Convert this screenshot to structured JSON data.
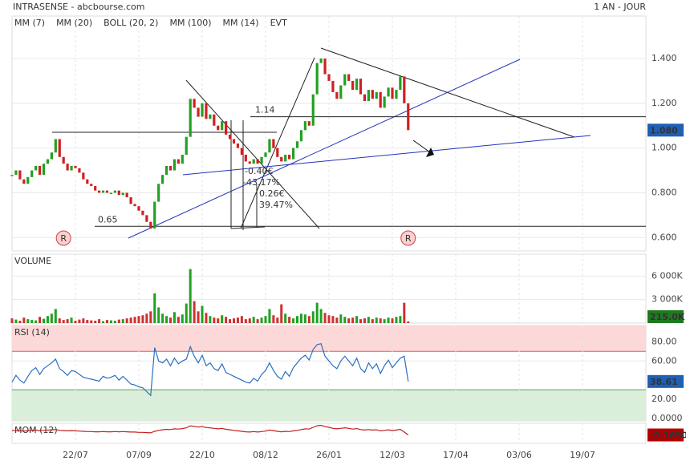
{
  "chart_data": {
    "type": "stock",
    "title": "INTRASENSE - abcbourse.com",
    "period": "1 AN - JOUR",
    "legend": [
      {
        "name": "MM (7)",
        "color": "#2a3fc9"
      },
      {
        "name": "MM (20)",
        "color": "#d62020"
      },
      {
        "name": "BOLL (20, 2)",
        "color": "#f0a860"
      },
      {
        "name": "MM (100)",
        "color": "#22b022"
      },
      {
        "name": "MM (14)",
        "color": "#222222"
      },
      {
        "name": "EVT",
        "color": "#222222"
      }
    ],
    "xlim": [
      0,
      160
    ],
    "xticks": [
      {
        "value": 16,
        "label": "22/07"
      },
      {
        "value": 32,
        "label": "07/09"
      },
      {
        "value": 48,
        "label": "22/10"
      },
      {
        "value": 64,
        "label": "08/12"
      },
      {
        "value": 80,
        "label": "26/01"
      },
      {
        "value": 96,
        "label": "12/03"
      },
      {
        "value": 112,
        "label": "17/04"
      },
      {
        "value": 128,
        "label": "03/06"
      },
      {
        "value": 144,
        "label": "19/07"
      }
    ],
    "price": {
      "up_color": "#22a022",
      "down_color": "#d02020",
      "values": [
        0.88,
        0.9,
        0.86,
        0.84,
        0.87,
        0.9,
        0.92,
        0.88,
        0.93,
        0.95,
        0.98,
        1.04,
        0.96,
        0.93,
        0.9,
        0.92,
        0.91,
        0.89,
        0.86,
        0.84,
        0.83,
        0.81,
        0.8,
        0.81,
        0.8,
        0.8,
        0.81,
        0.79,
        0.8,
        0.78,
        0.75,
        0.74,
        0.72,
        0.7,
        0.67,
        0.64,
        0.76,
        0.84,
        0.88,
        0.92,
        0.9,
        0.95,
        0.93,
        0.97,
        1.05,
        1.22,
        1.18,
        1.14,
        1.2,
        1.13,
        1.15,
        1.1,
        1.08,
        1.12,
        1.06,
        1.04,
        1.02,
        1.0,
        0.97,
        0.94,
        0.93,
        0.95,
        0.93,
        0.96,
        0.98,
        1.04,
        1.0,
        0.96,
        0.94,
        0.97,
        0.95,
        1.0,
        1.03,
        1.08,
        1.12,
        1.1,
        1.24,
        1.38,
        1.4,
        1.33,
        1.3,
        1.25,
        1.22,
        1.28,
        1.33,
        1.3,
        1.26,
        1.31,
        1.24,
        1.21,
        1.26,
        1.22,
        1.25,
        1.18,
        1.23,
        1.27,
        1.22,
        1.26,
        1.32,
        1.2,
        1.08
      ],
      "last_label": "1.080",
      "badge_color": "#1f5fb4",
      "ylim": [
        0.54,
        1.59
      ],
      "yticks": [
        {
          "value": 0.6,
          "label": "0.600"
        },
        {
          "value": 0.8,
          "label": "0.800"
        },
        {
          "value": 1.0,
          "label": "1.000"
        },
        {
          "value": 1.2,
          "label": "1.200"
        },
        {
          "value": 1.4,
          "label": "1.400"
        }
      ],
      "levels": [
        1.14,
        0.65
      ],
      "annotations": [
        "-0.40€",
        "-43.17%",
        "0.26€",
        "39.47%"
      ],
      "events": [
        {
          "label": "R",
          "at": 13
        },
        {
          "label": "R",
          "at": 100
        }
      ]
    },
    "volume": {
      "title": "VOLUME",
      "color": "#d03030",
      "up_color": "#22a022",
      "values": [
        600,
        450,
        300,
        700,
        500,
        400,
        350,
        800,
        550,
        900,
        1200,
        1800,
        600,
        400,
        500,
        700,
        300,
        450,
        600,
        400,
        350,
        300,
        500,
        250,
        400,
        350,
        300,
        450,
        500,
        600,
        700,
        800,
        900,
        1000,
        1200,
        1500,
        3800,
        2000,
        1200,
        900,
        700,
        1400,
        800,
        1100,
        2500,
        6900,
        2800,
        1500,
        2200,
        1300,
        900,
        700,
        600,
        1000,
        800,
        500,
        600,
        700,
        900,
        500,
        600,
        800,
        500,
        700,
        900,
        1800,
        1000,
        700,
        2400,
        1200,
        800,
        600,
        900,
        1200,
        1100,
        900,
        1500,
        2600,
        1800,
        1300,
        1000,
        900,
        700,
        1100,
        800,
        600,
        700,
        900,
        500,
        600,
        800,
        500,
        700,
        600,
        500,
        700,
        600,
        800,
        900,
        2600,
        215
      ],
      "last_label": "215.0K",
      "badge_color": "#1e7a1e",
      "ylim": [
        0,
        8800
      ],
      "yticks": [
        {
          "value": 3000,
          "label": "3 000K"
        },
        {
          "value": 6000,
          "label": "6 000K"
        }
      ]
    },
    "rsi": {
      "title": "RSI (14)",
      "color": "#2a6fc0",
      "values": [
        38,
        45,
        40,
        37,
        44,
        50,
        53,
        46,
        52,
        55,
        58,
        62,
        52,
        49,
        45,
        50,
        49,
        46,
        43,
        42,
        41,
        40,
        39,
        44,
        42,
        43,
        45,
        40,
        44,
        40,
        36,
        35,
        33,
        32,
        28,
        24,
        74,
        60,
        58,
        62,
        55,
        63,
        57,
        60,
        62,
        75,
        65,
        58,
        66,
        55,
        58,
        52,
        50,
        57,
        48,
        46,
        44,
        42,
        40,
        38,
        37,
        42,
        39,
        46,
        50,
        58,
        50,
        44,
        41,
        49,
        44,
        53,
        58,
        63,
        66,
        61,
        72,
        77,
        78,
        65,
        60,
        55,
        52,
        60,
        65,
        60,
        55,
        63,
        52,
        48,
        58,
        52,
        57,
        47,
        55,
        61,
        53,
        58,
        63,
        65,
        38.61
      ],
      "badge_color": "#1f5fb4",
      "ylim": [
        -2.5,
        97
      ],
      "overbought": 70,
      "oversold": 30,
      "yticks": [
        {
          "value": 0,
          "label": "0.0000"
        },
        {
          "value": 20,
          "label": "20.00"
        },
        {
          "value": 60,
          "label": "60.00"
        },
        {
          "value": 80,
          "label": "80.00"
        }
      ]
    },
    "mom": {
      "title": "MOM (12)",
      "color": "#c02020",
      "values": [
        0.01,
        0.02,
        0.0,
        -0.01,
        0.01,
        0.02,
        0.03,
        0.01,
        0.02,
        0.03,
        0.04,
        0.05,
        0.02,
        0.01,
        0.0,
        0.01,
        0.0,
        -0.01,
        -0.02,
        -0.03,
        -0.03,
        -0.04,
        -0.04,
        -0.03,
        -0.04,
        -0.04,
        -0.03,
        -0.04,
        -0.03,
        -0.04,
        -0.05,
        -0.05,
        -0.06,
        -0.06,
        -0.07,
        -0.08,
        -0.02,
        0.02,
        0.04,
        0.06,
        0.05,
        0.08,
        0.07,
        0.09,
        0.12,
        0.2,
        0.18,
        0.15,
        0.17,
        0.13,
        0.12,
        0.1,
        0.08,
        0.1,
        0.06,
        0.04,
        0.02,
        0.0,
        -0.02,
        -0.04,
        -0.05,
        -0.03,
        -0.05,
        -0.03,
        -0.01,
        0.03,
        0.01,
        -0.02,
        -0.04,
        -0.02,
        -0.03,
        0.0,
        0.02,
        0.05,
        0.08,
        0.07,
        0.14,
        0.2,
        0.22,
        0.17,
        0.14,
        0.1,
        0.08,
        0.1,
        0.12,
        0.1,
        0.07,
        0.09,
        0.05,
        0.03,
        0.05,
        0.03,
        0.04,
        0.0,
        0.02,
        0.04,
        0.01,
        0.03,
        0.06,
        -0.05,
        -0.165
      ],
      "last_label": "-0.1650",
      "badge_color": "#b00000",
      "ylim": [
        -0.5,
        0.3
      ]
    }
  }
}
